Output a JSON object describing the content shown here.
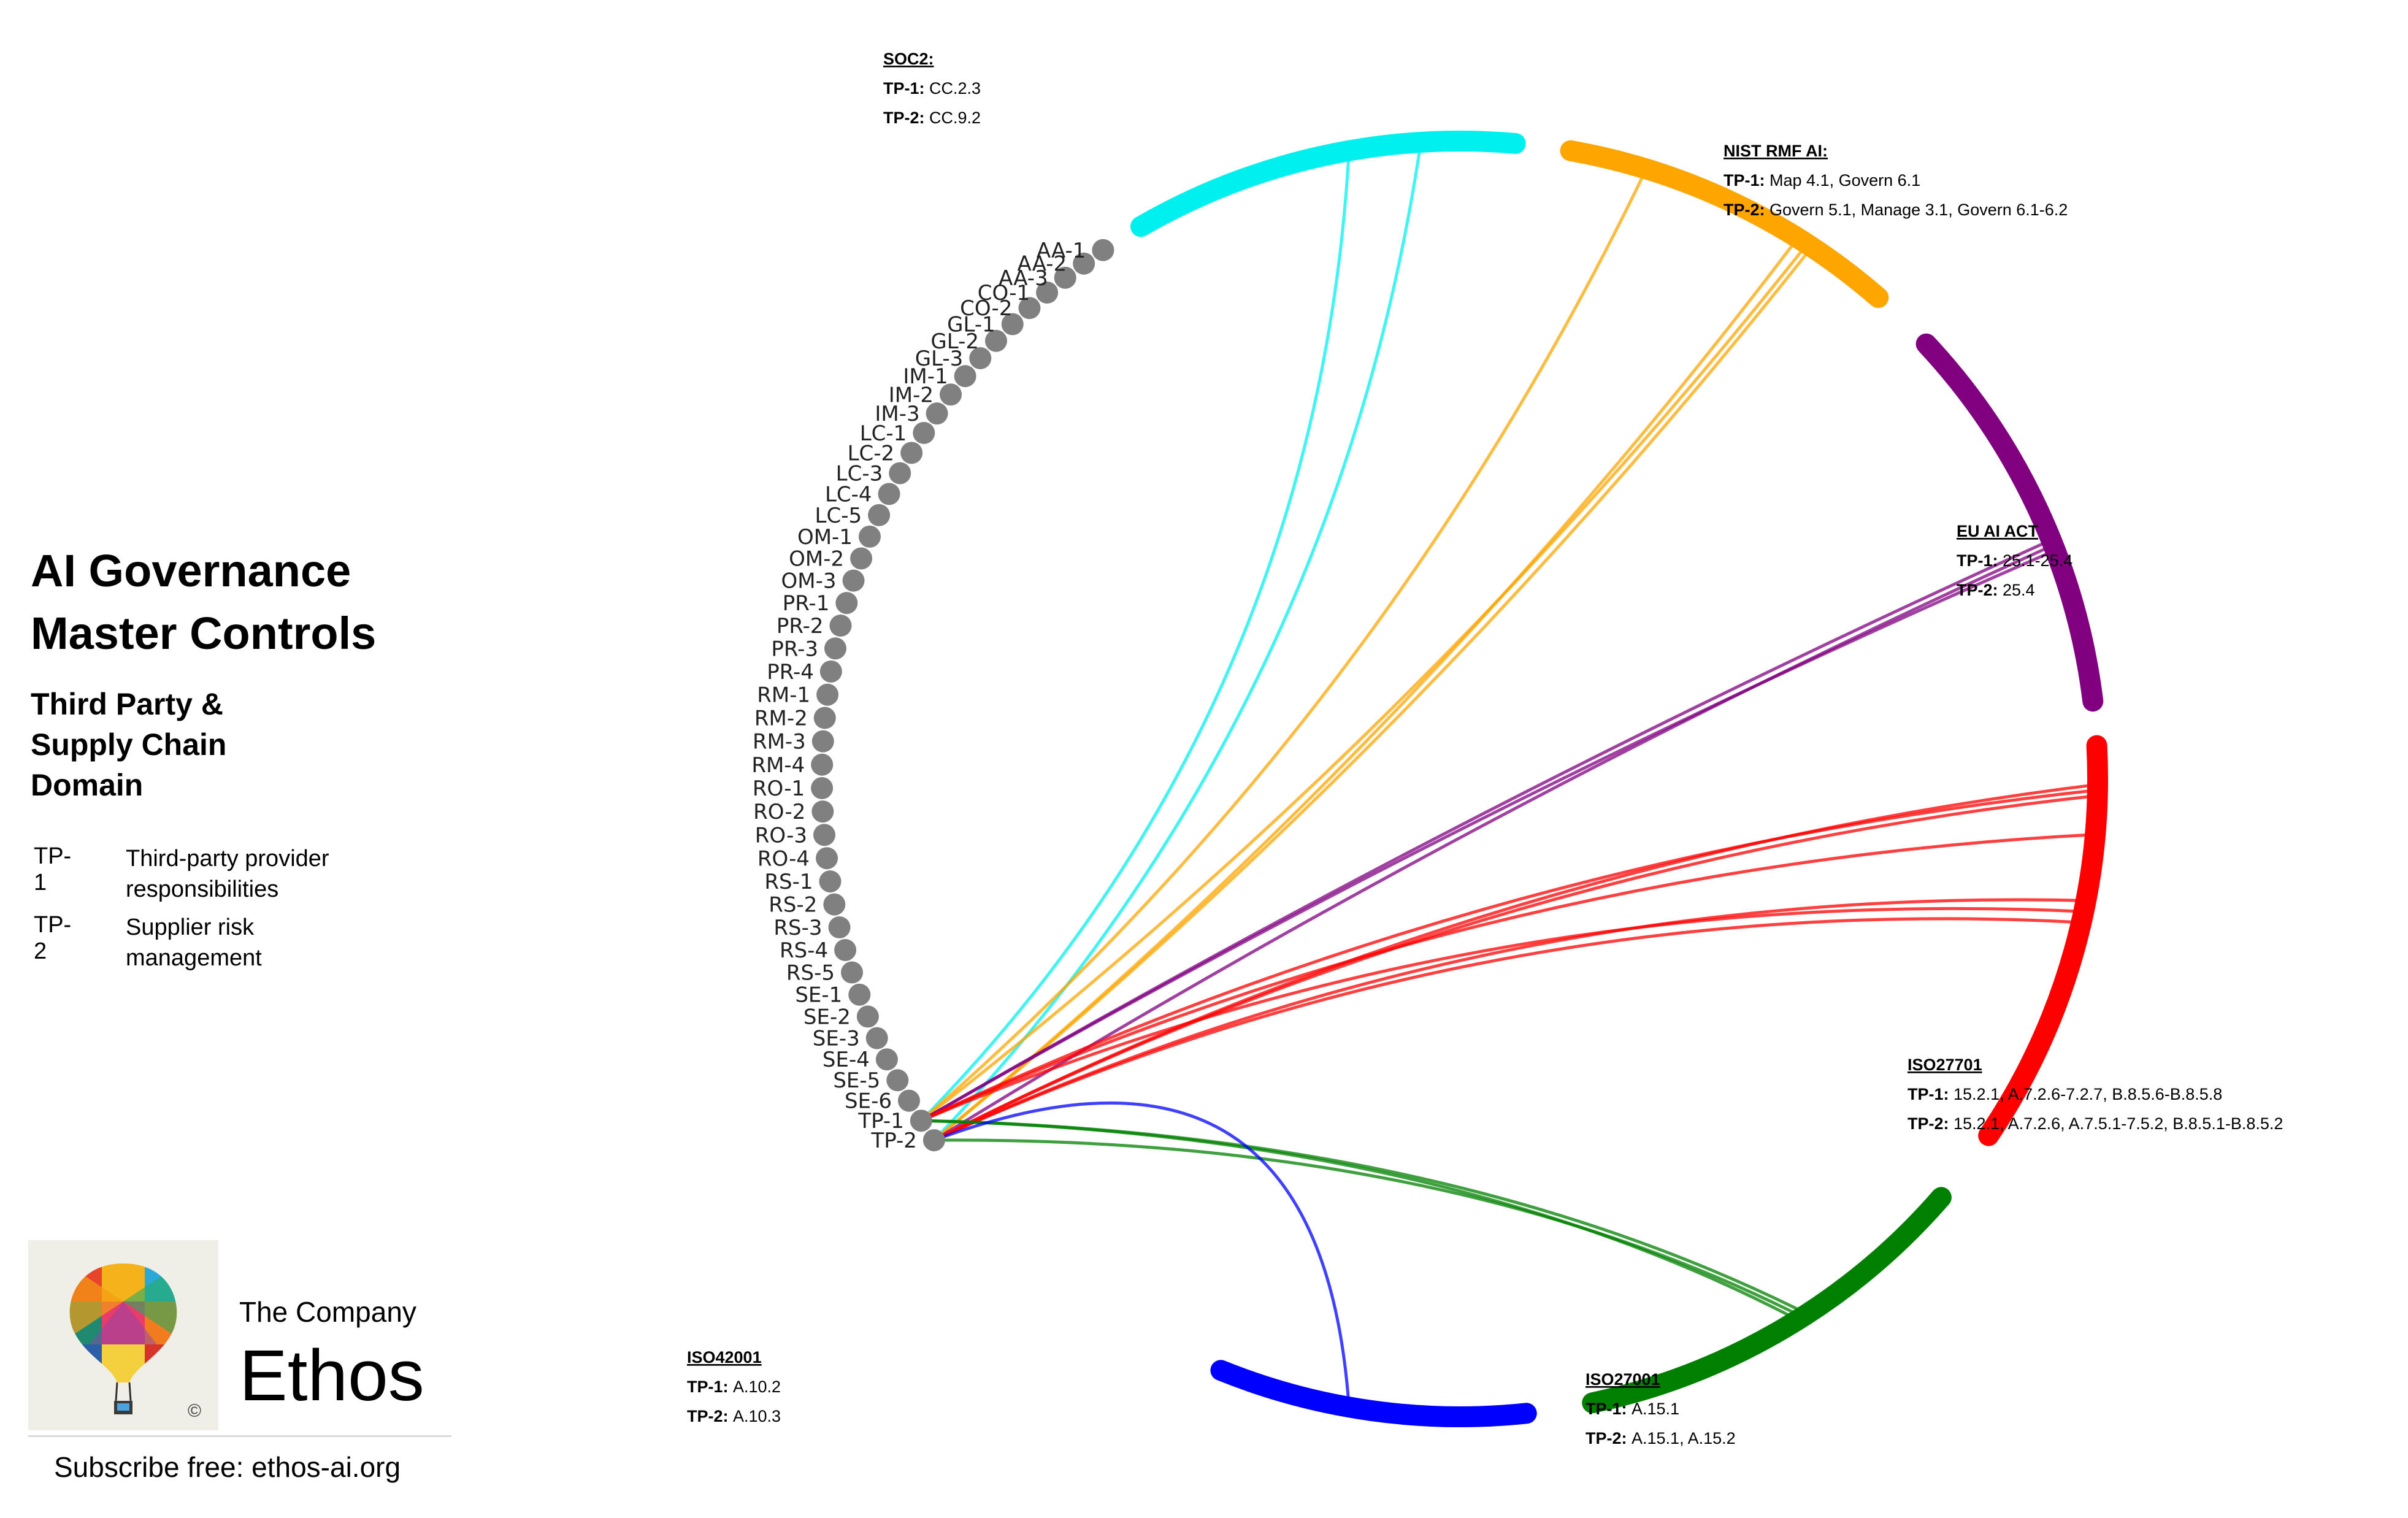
{
  "title": {
    "line1": "AI Governance",
    "line2": "Master Controls",
    "sub1": "Third Party &",
    "sub2": "Supply Chain",
    "sub3": "Domain"
  },
  "legend": [
    {
      "code": "TP-1",
      "description": "Third-party provider responsibilities"
    },
    {
      "code": "TP-2",
      "description": "Supplier risk management"
    }
  ],
  "brand": {
    "company_small": "The Company",
    "company_big": "Ethos",
    "subscribe": "Subscribe free: ethos-ai.org",
    "copyright": "©"
  },
  "nodes": [
    "AA-1",
    "AA-2",
    "AA-3",
    "CO-1",
    "CO-2",
    "GL-1",
    "GL-2",
    "GL-3",
    "IM-1",
    "IM-2",
    "IM-3",
    "LC-1",
    "LC-2",
    "LC-3",
    "LC-4",
    "LC-5",
    "OM-1",
    "OM-2",
    "OM-3",
    "PR-1",
    "PR-2",
    "PR-3",
    "PR-4",
    "RM-1",
    "RM-2",
    "RM-3",
    "RM-4",
    "RO-1",
    "RO-2",
    "RO-3",
    "RO-4",
    "RS-1",
    "RS-2",
    "RS-3",
    "RS-4",
    "RS-5",
    "SE-1",
    "SE-2",
    "SE-3",
    "SE-4",
    "SE-5",
    "SE-6",
    "TP-1",
    "TP-2"
  ],
  "colors": {
    "node": "#808080",
    "soc2": "#00f0f0",
    "nist": "#ffa500",
    "euai": "#800080",
    "iso27701": "#ff0000",
    "iso27001": "#008000",
    "iso42001": "#0000ff"
  },
  "frameworks": [
    {
      "key": "soc2",
      "name": "SOC2:",
      "tp1": "CC.2.3",
      "tp2": "CC.9.2"
    },
    {
      "key": "nist",
      "name": "NIST RMF AI:",
      "tp1": "Map 4.1, Govern 6.1",
      "tp2": "Govern 5.1, Manage 3.1, Govern 6.1-6.2"
    },
    {
      "key": "euai",
      "name": "EU AI ACT",
      "tp1": "25.1-25.4",
      "tp2": "25.4"
    },
    {
      "key": "iso27701",
      "name": "ISO27701",
      "tp1": "15.2.1, A.7.2.6-7.2.7, B.8.5.6-B.8.5.8",
      "tp2": "15.2.1, A.7.2.6, A.7.5.1-7.5.2, B.8.5.1-B.8.5.2"
    },
    {
      "key": "iso27001",
      "name": "ISO27001",
      "tp1": "A.15.1",
      "tp2": "A.15.1,  A.15.2"
    },
    {
      "key": "iso42001",
      "name": "ISO42001",
      "tp1": "A.10.2",
      "tp2": "A.10.3"
    }
  ],
  "row_labels": {
    "tp1": "TP-1:",
    "tp2": "TP-2:"
  }
}
